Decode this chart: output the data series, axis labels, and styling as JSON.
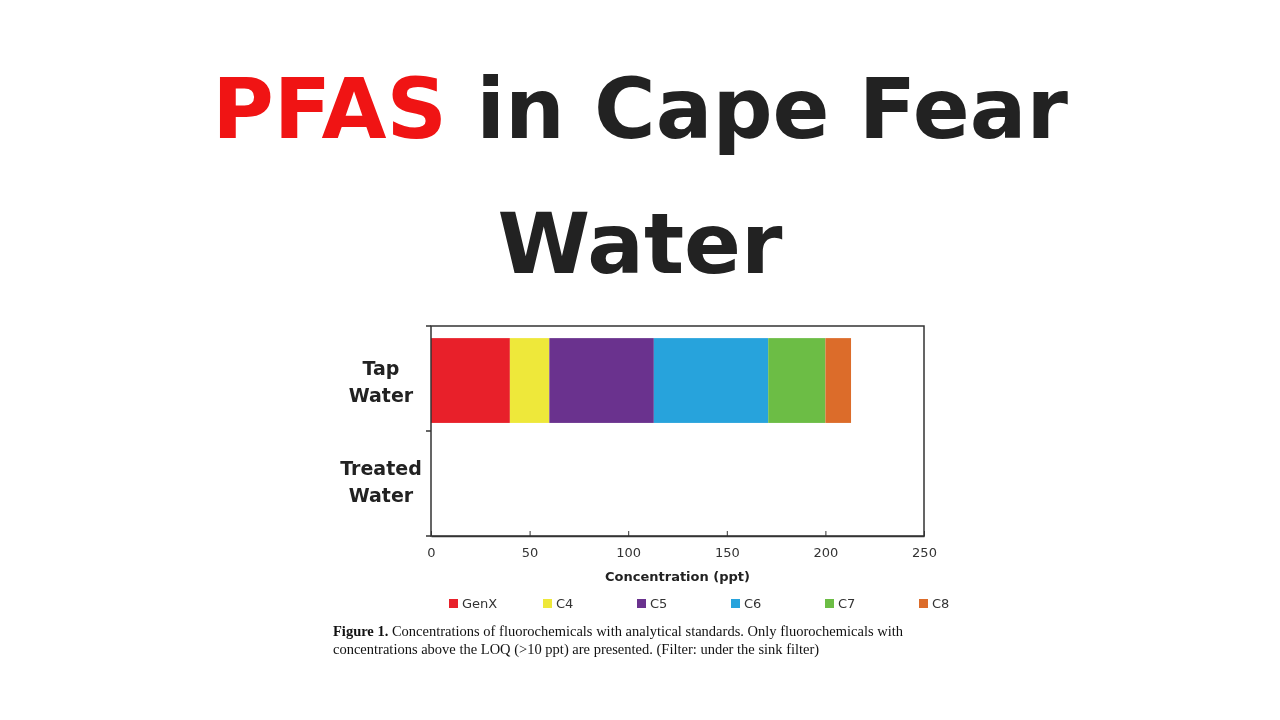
{
  "chart_data": {
    "type": "bar",
    "orientation": "horizontal",
    "stacked": true,
    "title": "PFAS in Cape Fear Water",
    "xlabel": "Concentration (ppt)",
    "categories": [
      "Tap Water",
      "Treated Water"
    ],
    "series": [
      {
        "name": "GenX",
        "color": "#e8202a",
        "values": [
          40,
          null
        ]
      },
      {
        "name": "C4",
        "color": "#eee83a",
        "values": [
          20,
          null
        ]
      },
      {
        "name": "C5",
        "color": "#6a328e",
        "values": [
          53,
          null
        ]
      },
      {
        "name": "C6",
        "color": "#27a3dc",
        "values": [
          58,
          null
        ]
      },
      {
        "name": "C7",
        "color": "#6cbd45",
        "values": [
          29,
          null
        ]
      },
      {
        "name": "C8",
        "color": "#dc6c2a",
        "values": [
          13,
          null
        ]
      }
    ],
    "xlim": [
      0,
      250
    ],
    "xticks": [
      0,
      50,
      100,
      150,
      200,
      250
    ],
    "grid": false,
    "legend": "bottom",
    "annotations": [
      "Figure 1. Concentrations of fluorochemicals with analytical standards. Only fluorochemicals with concentrations above the LOQ (>10 ppt) are presented. (Filter: under the sink filter)"
    ]
  }
}
